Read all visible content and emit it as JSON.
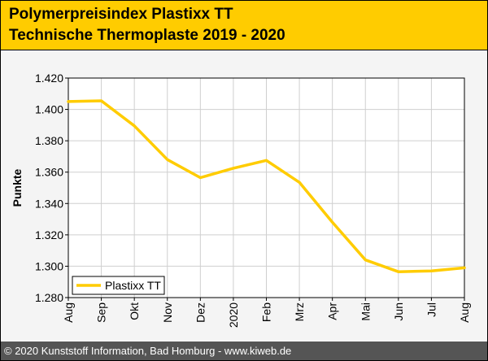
{
  "header": {
    "title_line1": "Polymerpreisindex Plastixx TT",
    "title_line2": "Technische Thermoplaste 2019 - 2020",
    "background_color": "#ffcc00"
  },
  "footer": {
    "text": "© 2020 Kunststoff Information, Bad Homburg - www.kiweb.de",
    "background_color": "#555555"
  },
  "chart_data": {
    "type": "line",
    "title": "",
    "xlabel": "",
    "ylabel": "Punkte",
    "categories": [
      "Aug",
      "Sep",
      "Okt",
      "Nov",
      "Dez",
      "2020",
      "Feb",
      "Mrz",
      "Apr",
      "Mai",
      "Jun",
      "Jul",
      "Aug"
    ],
    "series": [
      {
        "name": "Plastixx TT",
        "color": "#ffcc00",
        "values": [
          1.405,
          1.4055,
          1.3895,
          1.368,
          1.3565,
          1.3625,
          1.3675,
          1.3535,
          1.328,
          1.304,
          1.2965,
          1.297,
          1.299
        ]
      }
    ],
    "ylim": [
      1.28,
      1.42
    ],
    "yticks": [
      1.28,
      1.3,
      1.32,
      1.34,
      1.36,
      1.38,
      1.4,
      1.42
    ],
    "ytick_labels": [
      "1.280",
      "1.300",
      "1.320",
      "1.340",
      "1.360",
      "1.380",
      "1.400",
      "1.420"
    ],
    "grid": true,
    "legend_position": "bottom-left"
  }
}
